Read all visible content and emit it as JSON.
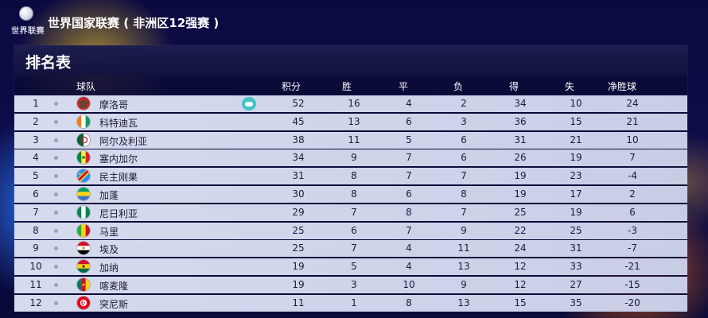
{
  "header": {
    "logo_text": "世界联赛",
    "league_title": "世界国家联赛 ( 非洲区12强赛 )"
  },
  "panel": {
    "title": "排名表",
    "columns": {
      "team": "球队",
      "points": "积分",
      "wins": "胜",
      "draws": "平",
      "losses": "负",
      "goals_for": "得",
      "goals_against": "失",
      "goal_diff": "净胜球"
    }
  },
  "rows": [
    {
      "rank": "1",
      "team": "摩洛哥",
      "points": "52",
      "wins": "16",
      "draws": "4",
      "losses": "2",
      "gf": "34",
      "ga": "10",
      "gd": "24",
      "controller": true
    },
    {
      "rank": "2",
      "team": "科特迪瓦",
      "points": "45",
      "wins": "13",
      "draws": "6",
      "losses": "3",
      "gf": "36",
      "ga": "15",
      "gd": "21"
    },
    {
      "rank": "3",
      "team": "阿尔及利亚",
      "points": "38",
      "wins": "11",
      "draws": "5",
      "losses": "6",
      "gf": "31",
      "ga": "21",
      "gd": "10"
    },
    {
      "rank": "4",
      "team": "塞内加尔",
      "points": "34",
      "wins": "9",
      "draws": "7",
      "losses": "6",
      "gf": "26",
      "ga": "19",
      "gd": "7"
    },
    {
      "rank": "5",
      "team": "民主刚果",
      "points": "31",
      "wins": "8",
      "draws": "7",
      "losses": "7",
      "gf": "19",
      "ga": "23",
      "gd": "-4"
    },
    {
      "rank": "6",
      "team": "加蓬",
      "points": "30",
      "wins": "8",
      "draws": "6",
      "losses": "8",
      "gf": "19",
      "ga": "17",
      "gd": "2"
    },
    {
      "rank": "7",
      "team": "尼日利亚",
      "points": "29",
      "wins": "7",
      "draws": "8",
      "losses": "7",
      "gf": "25",
      "ga": "19",
      "gd": "6"
    },
    {
      "rank": "8",
      "team": "马里",
      "points": "25",
      "wins": "6",
      "draws": "7",
      "losses": "9",
      "gf": "22",
      "ga": "25",
      "gd": "-3"
    },
    {
      "rank": "9",
      "team": "埃及",
      "points": "25",
      "wins": "7",
      "draws": "4",
      "losses": "11",
      "gf": "24",
      "ga": "31",
      "gd": "-7"
    },
    {
      "rank": "10",
      "team": "加纳",
      "points": "19",
      "wins": "5",
      "draws": "4",
      "losses": "13",
      "gf": "12",
      "ga": "33",
      "gd": "-21"
    },
    {
      "rank": "11",
      "team": "喀麦隆",
      "points": "19",
      "wins": "3",
      "draws": "10",
      "losses": "9",
      "gf": "12",
      "ga": "27",
      "gd": "-15"
    },
    {
      "rank": "12",
      "team": "突尼斯",
      "points": "11",
      "wins": "1",
      "draws": "8",
      "losses": "13",
      "gf": "15",
      "ga": "35",
      "gd": "-20"
    }
  ],
  "colors": {
    "panel_bg": "#0c0c38",
    "row_bg": "#d7dbee",
    "row_text": "#1c1c3a",
    "controller_icon": "#3fc4c8"
  },
  "icons": {
    "controller": "gamepad-icon",
    "flag": "team-flag-icon",
    "dot": "status-dot-icon"
  }
}
